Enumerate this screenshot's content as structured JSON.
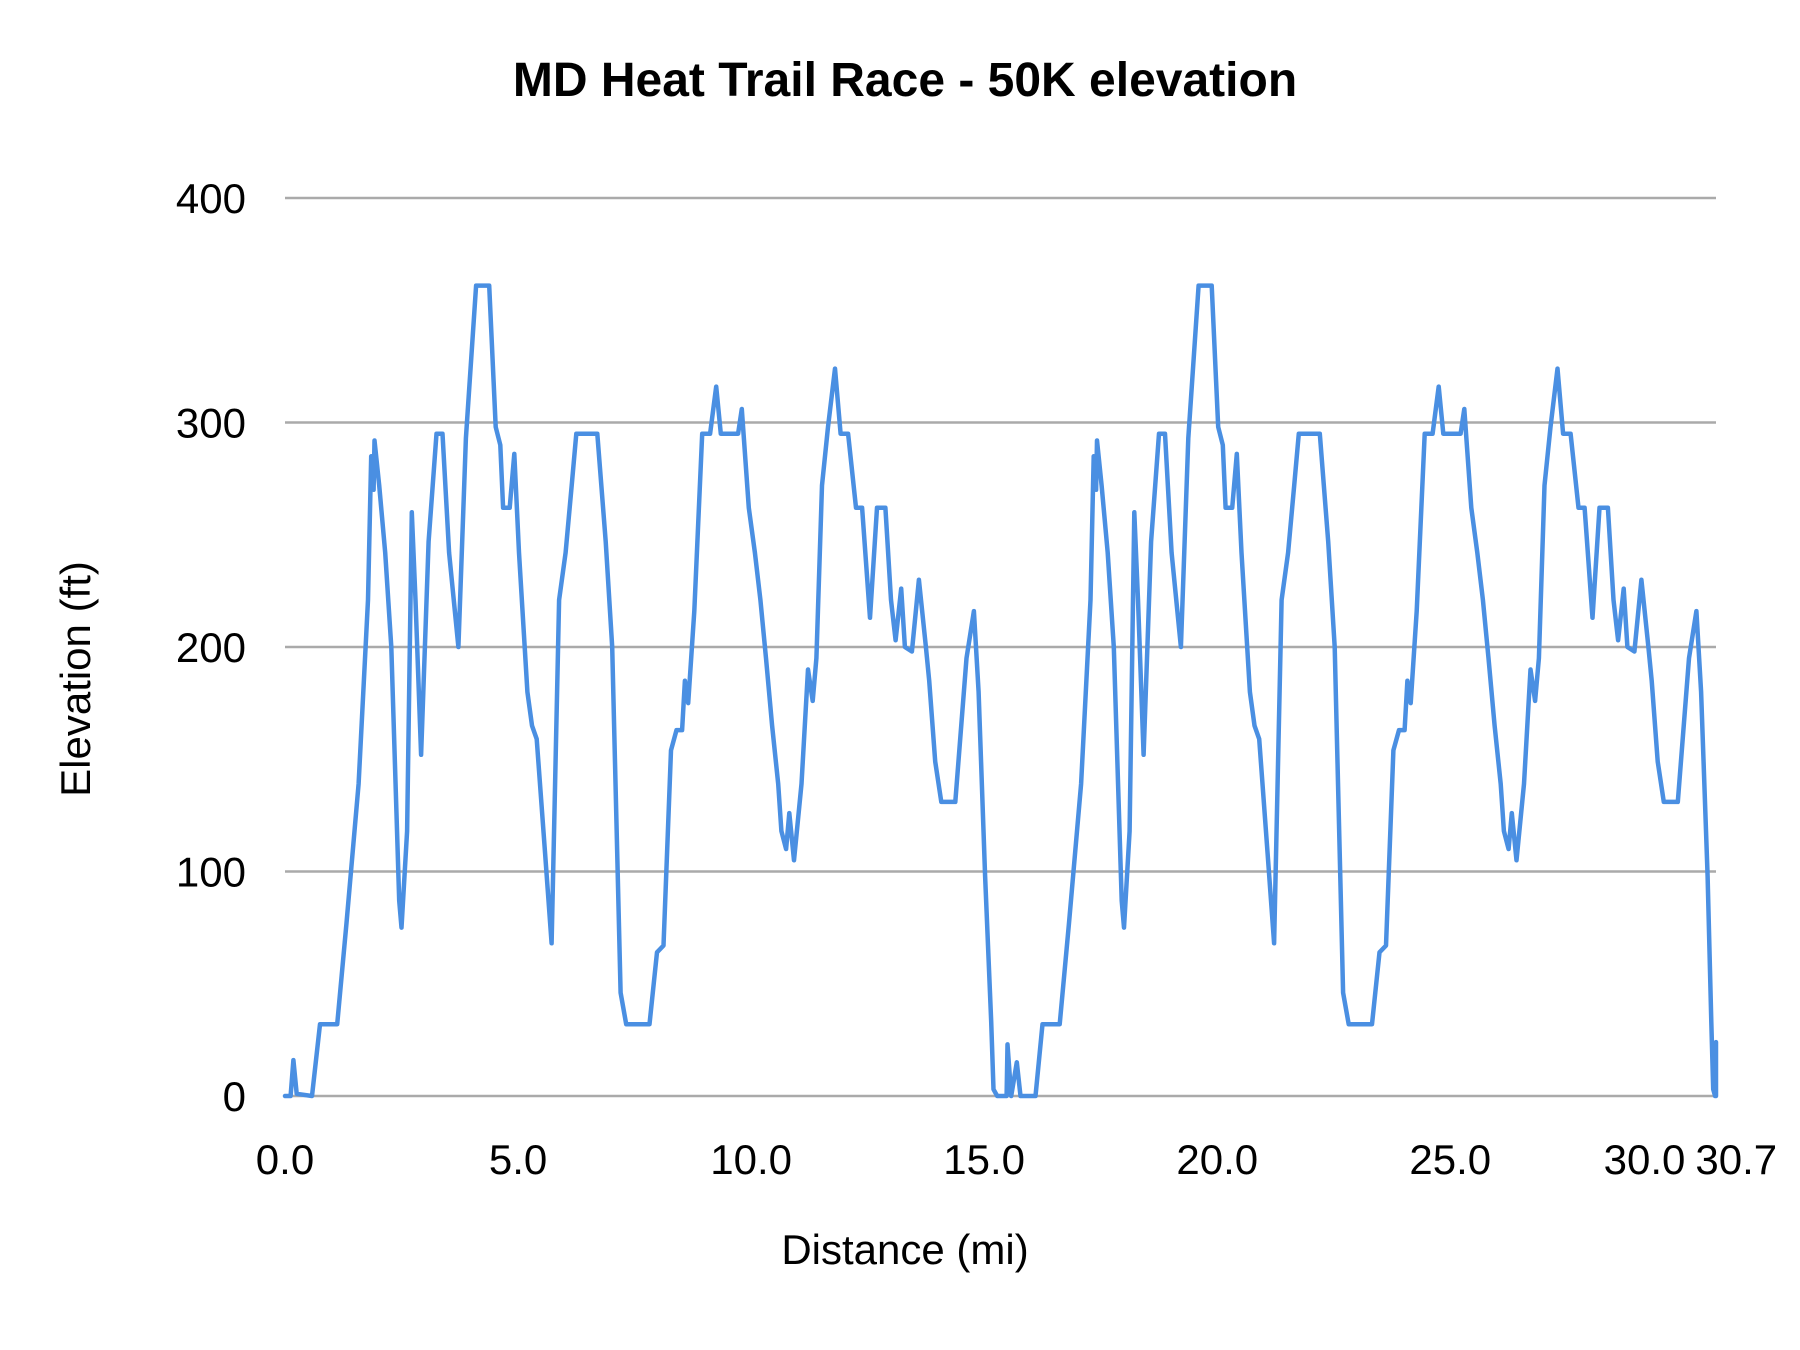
{
  "chart_data": {
    "type": "line",
    "title": "MD Heat Trail Race - 50K elevation",
    "xlabel": "Distance (mi)",
    "ylabel": "Elevation (ft)",
    "xlim": [
      0,
      30.7
    ],
    "ylim": [
      0,
      400
    ],
    "x_ticks": [
      0,
      5,
      10,
      15,
      20,
      25,
      30,
      30.7
    ],
    "x_tick_labels": [
      "0.0",
      "5.0",
      "10.0",
      "15.0",
      "20.0",
      "25.0",
      "30.0",
      "30.7"
    ],
    "y_ticks": [
      0,
      100,
      200,
      300,
      400
    ],
    "y_tick_labels": [
      "0",
      "100",
      "200",
      "300",
      "400"
    ],
    "grid": "horizontal",
    "legend": "none",
    "colors": {
      "line": "#4a8fe2",
      "grid": "#aaaaaa"
    },
    "series": [
      {
        "points": [
          [
            0,
            0
          ],
          [
            0.12,
            0
          ],
          [
            0.18,
            16
          ],
          [
            0.25,
            1
          ],
          [
            0.58,
            0
          ],
          [
            0.75,
            32
          ],
          [
            1.12,
            32
          ],
          [
            1.32,
            77
          ],
          [
            1.58,
            139
          ],
          [
            1.78,
            221
          ],
          [
            1.85,
            285
          ],
          [
            1.9,
            270
          ],
          [
            1.92,
            292
          ],
          [
            2.02,
            272
          ],
          [
            2.15,
            242
          ],
          [
            2.28,
            200
          ],
          [
            2.45,
            87
          ],
          [
            2.5,
            75
          ],
          [
            2.62,
            118
          ],
          [
            2.72,
            260
          ],
          [
            2.8,
            221
          ],
          [
            2.92,
            152
          ],
          [
            3.08,
            247
          ],
          [
            3.25,
            295
          ],
          [
            3.38,
            295
          ],
          [
            3.52,
            242
          ],
          [
            3.72,
            200
          ],
          [
            3.88,
            293
          ],
          [
            4.1,
            361
          ],
          [
            4.38,
            361
          ],
          [
            4.52,
            298
          ],
          [
            4.62,
            290
          ],
          [
            4.68,
            262
          ],
          [
            4.82,
            262
          ],
          [
            4.92,
            286
          ],
          [
            5.02,
            242
          ],
          [
            5.2,
            180
          ],
          [
            5.3,
            165
          ],
          [
            5.4,
            159
          ],
          [
            5.58,
            108
          ],
          [
            5.72,
            68
          ],
          [
            5.88,
            221
          ],
          [
            6.02,
            242
          ],
          [
            6.15,
            272
          ],
          [
            6.25,
            295
          ],
          [
            6.7,
            295
          ],
          [
            6.88,
            247
          ],
          [
            7.02,
            200
          ],
          [
            7.2,
            46
          ],
          [
            7.32,
            32
          ],
          [
            7.82,
            32
          ],
          [
            7.98,
            64
          ],
          [
            8.12,
            67
          ],
          [
            8.28,
            154
          ],
          [
            8.4,
            163
          ],
          [
            8.52,
            163
          ],
          [
            8.58,
            185
          ],
          [
            8.65,
            175
          ],
          [
            8.78,
            216
          ],
          [
            8.95,
            295
          ],
          [
            9.12,
            295
          ],
          [
            9.25,
            316
          ],
          [
            9.35,
            295
          ],
          [
            9.72,
            295
          ],
          [
            9.8,
            306
          ],
          [
            9.95,
            262
          ],
          [
            10.08,
            242
          ],
          [
            10.2,
            221
          ],
          [
            10.32,
            195
          ],
          [
            10.45,
            165
          ],
          [
            10.58,
            139
          ],
          [
            10.65,
            118
          ],
          [
            10.75,
            110
          ],
          [
            10.82,
            126
          ],
          [
            10.92,
            105
          ],
          [
            11.08,
            139
          ],
          [
            11.22,
            190
          ],
          [
            11.32,
            176
          ],
          [
            11.4,
            195
          ],
          [
            11.52,
            272
          ],
          [
            11.65,
            298
          ],
          [
            11.8,
            324
          ],
          [
            11.92,
            295
          ],
          [
            12.08,
            295
          ],
          [
            12.25,
            262
          ],
          [
            12.38,
            262
          ],
          [
            12.55,
            213
          ],
          [
            12.7,
            262
          ],
          [
            12.88,
            262
          ],
          [
            13.0,
            221
          ],
          [
            13.1,
            203
          ],
          [
            13.22,
            226
          ],
          [
            13.3,
            200
          ],
          [
            13.45,
            198
          ],
          [
            13.6,
            230
          ],
          [
            13.75,
            200
          ],
          [
            13.82,
            185
          ],
          [
            13.95,
            149
          ],
          [
            14.08,
            131
          ],
          [
            14.38,
            131
          ],
          [
            14.62,
            195
          ],
          [
            14.78,
            216
          ],
          [
            14.88,
            180
          ],
          [
            15.02,
            98
          ],
          [
            15.15,
            33
          ],
          [
            15.2,
            3
          ],
          [
            15.28,
            0
          ],
          [
            15.48,
            0
          ],
          [
            15.5,
            23
          ],
          [
            15.58,
            0
          ],
          [
            15.7,
            15
          ],
          [
            15.78,
            0
          ],
          [
            16.1,
            0
          ],
          [
            16.25,
            32
          ],
          [
            16.62,
            32
          ],
          [
            16.82,
            77
          ],
          [
            17.08,
            139
          ],
          [
            17.28,
            221
          ],
          [
            17.35,
            285
          ],
          [
            17.4,
            270
          ],
          [
            17.42,
            292
          ],
          [
            17.52,
            272
          ],
          [
            17.65,
            242
          ],
          [
            17.78,
            200
          ],
          [
            17.95,
            87
          ],
          [
            18.0,
            75
          ],
          [
            18.12,
            118
          ],
          [
            18.22,
            260
          ],
          [
            18.3,
            221
          ],
          [
            18.42,
            152
          ],
          [
            18.58,
            247
          ],
          [
            18.75,
            295
          ],
          [
            18.88,
            295
          ],
          [
            19.02,
            242
          ],
          [
            19.22,
            200
          ],
          [
            19.38,
            293
          ],
          [
            19.6,
            361
          ],
          [
            19.88,
            361
          ],
          [
            20.02,
            298
          ],
          [
            20.12,
            290
          ],
          [
            20.18,
            262
          ],
          [
            20.32,
            262
          ],
          [
            20.42,
            286
          ],
          [
            20.52,
            242
          ],
          [
            20.7,
            180
          ],
          [
            20.8,
            165
          ],
          [
            20.9,
            159
          ],
          [
            21.08,
            108
          ],
          [
            21.22,
            68
          ],
          [
            21.38,
            221
          ],
          [
            21.52,
            242
          ],
          [
            21.65,
            272
          ],
          [
            21.75,
            295
          ],
          [
            22.2,
            295
          ],
          [
            22.38,
            247
          ],
          [
            22.52,
            200
          ],
          [
            22.7,
            46
          ],
          [
            22.82,
            32
          ],
          [
            23.32,
            32
          ],
          [
            23.48,
            64
          ],
          [
            23.62,
            67
          ],
          [
            23.78,
            154
          ],
          [
            23.9,
            163
          ],
          [
            24.02,
            163
          ],
          [
            24.08,
            185
          ],
          [
            24.15,
            175
          ],
          [
            24.28,
            216
          ],
          [
            24.45,
            295
          ],
          [
            24.62,
            295
          ],
          [
            24.75,
            316
          ],
          [
            24.85,
            295
          ],
          [
            25.22,
            295
          ],
          [
            25.3,
            306
          ],
          [
            25.45,
            262
          ],
          [
            25.58,
            242
          ],
          [
            25.7,
            221
          ],
          [
            25.82,
            195
          ],
          [
            25.95,
            165
          ],
          [
            26.08,
            139
          ],
          [
            26.15,
            118
          ],
          [
            26.25,
            110
          ],
          [
            26.32,
            126
          ],
          [
            26.42,
            105
          ],
          [
            26.58,
            139
          ],
          [
            26.72,
            190
          ],
          [
            26.82,
            176
          ],
          [
            26.9,
            195
          ],
          [
            27.02,
            272
          ],
          [
            27.15,
            298
          ],
          [
            27.3,
            324
          ],
          [
            27.42,
            295
          ],
          [
            27.58,
            295
          ],
          [
            27.75,
            262
          ],
          [
            27.88,
            262
          ],
          [
            28.05,
            213
          ],
          [
            28.2,
            262
          ],
          [
            28.38,
            262
          ],
          [
            28.5,
            221
          ],
          [
            28.6,
            203
          ],
          [
            28.72,
            226
          ],
          [
            28.8,
            200
          ],
          [
            28.95,
            198
          ],
          [
            29.1,
            230
          ],
          [
            29.25,
            200
          ],
          [
            29.32,
            185
          ],
          [
            29.45,
            149
          ],
          [
            29.58,
            131
          ],
          [
            29.88,
            131
          ],
          [
            30.12,
            195
          ],
          [
            30.28,
            216
          ],
          [
            30.38,
            180
          ],
          [
            30.52,
            98
          ],
          [
            30.6,
            33
          ],
          [
            30.64,
            3
          ],
          [
            30.68,
            0
          ],
          [
            30.7,
            0
          ],
          [
            30.7,
            24
          ]
        ]
      }
    ]
  }
}
